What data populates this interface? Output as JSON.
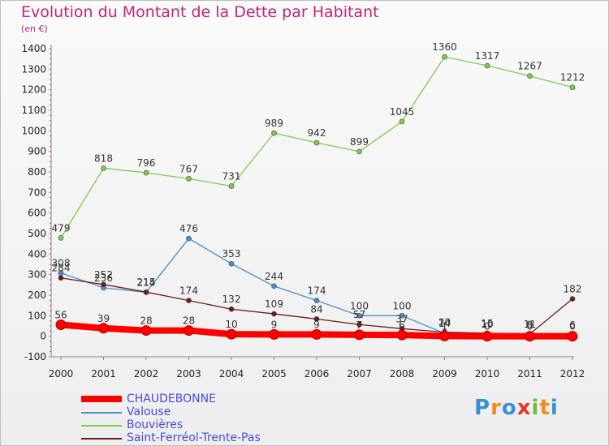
{
  "title": "Evolution du Montant de la Dette par Habitant",
  "unit": "(en €)",
  "brand": "Proxiti",
  "chart_data": {
    "type": "line",
    "title": "Evolution du Montant de la Dette par Habitant",
    "subtitle": "(en €)",
    "x": [
      "2000",
      "2001",
      "2002",
      "2003",
      "2004",
      "2005",
      "2006",
      "2007",
      "2008",
      "2009",
      "2010",
      "2011",
      "2012"
    ],
    "ylim": [
      -100,
      1400
    ],
    "yticks": [
      -100,
      0,
      100,
      200,
      300,
      400,
      500,
      600,
      700,
      800,
      900,
      1000,
      1100,
      1200,
      1300,
      1400
    ],
    "grid": false,
    "legend_position": "bottom-left",
    "series": [
      {
        "name": "CHAUDEBONNE",
        "color": "#ff0000",
        "values": [
          56,
          39,
          28,
          28,
          10,
          9,
          9,
          7,
          6,
          1,
          0,
          0,
          0
        ],
        "labels": [
          "56",
          "39",
          "28",
          "28",
          "10",
          "9",
          "9",
          "7",
          "6",
          "1",
          "0",
          "0",
          "0"
        ]
      },
      {
        "name": "Valouse",
        "color": "#4a90c8",
        "values": [
          308,
          236,
          214,
          476,
          353,
          244,
          174,
          100,
          100,
          14,
          10,
          9,
          6
        ],
        "labels": [
          "308",
          "236",
          "214",
          "476",
          "353",
          "244",
          "174",
          "100",
          "100",
          "14",
          "10",
          "9",
          "6"
        ]
      },
      {
        "name": "Bouvières",
        "color": "#7fcc4c",
        "values": [
          479,
          818,
          796,
          767,
          731,
          989,
          942,
          899,
          1045,
          1360,
          1317,
          1267,
          1212
        ],
        "labels": [
          "479",
          "818",
          "796",
          "767",
          "731",
          "989",
          "942",
          "899",
          "1045",
          "1360",
          "1317",
          "1267",
          "1212"
        ]
      },
      {
        "name": "Saint-Ferréol-Trente-Pas",
        "color": "#6b1c1c",
        "values": [
          284,
          252,
          215,
          174,
          132,
          109,
          84,
          57,
          37,
          20,
          15,
          11,
          182
        ],
        "labels": [
          "284",
          "252",
          "215",
          "174",
          "132",
          "109",
          "84",
          "57",
          "37",
          "20",
          "15",
          "11",
          "182"
        ]
      }
    ]
  }
}
